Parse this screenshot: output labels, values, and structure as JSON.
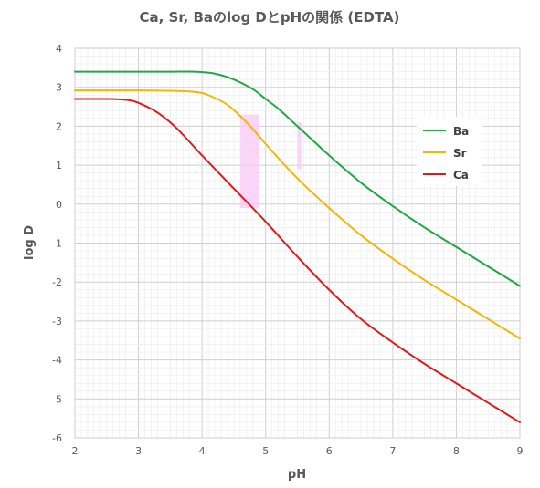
{
  "chart_data": {
    "type": "line",
    "title": "Ca, Sr, Baのlog DとpHの関係 (EDTA)",
    "xlabel": "pH",
    "ylabel": "log D",
    "xlim": [
      2,
      9
    ],
    "ylim": [
      -6,
      4
    ],
    "xticks": [
      "2",
      "3",
      "4",
      "5",
      "6",
      "7",
      "8",
      "9"
    ],
    "yticks": [
      "-6",
      "-5",
      "-4",
      "-3",
      "-2",
      "-1",
      "0",
      "1",
      "2",
      "3",
      "4"
    ],
    "grid": true,
    "legend_position": "right",
    "series": [
      {
        "name": "Ba",
        "color": "#1fa846",
        "x": [
          2.0,
          2.5,
          3.0,
          3.5,
          3.9,
          4.2,
          4.5,
          4.8,
          5.0,
          5.2,
          5.5,
          5.8,
          6.0,
          6.5,
          7.0,
          7.5,
          8.0,
          8.5,
          9.0
        ],
        "y": [
          3.4,
          3.4,
          3.4,
          3.4,
          3.4,
          3.35,
          3.2,
          2.95,
          2.7,
          2.45,
          2.0,
          1.55,
          1.25,
          0.55,
          -0.05,
          -0.6,
          -1.1,
          -1.6,
          -2.1
        ]
      },
      {
        "name": "Sr",
        "color": "#f2b705",
        "x": [
          2.0,
          2.5,
          3.0,
          3.5,
          3.9,
          4.1,
          4.4,
          4.7,
          5.0,
          5.3,
          5.6,
          6.0,
          6.5,
          7.0,
          7.5,
          8.0,
          8.5,
          9.0
        ],
        "y": [
          2.92,
          2.92,
          2.92,
          2.91,
          2.88,
          2.8,
          2.55,
          2.1,
          1.55,
          1.0,
          0.5,
          -0.1,
          -0.8,
          -1.4,
          -1.95,
          -2.45,
          -2.95,
          -3.45
        ]
      },
      {
        "name": "Ca",
        "color": "#e0191b",
        "x": [
          2.0,
          2.5,
          2.8,
          3.0,
          3.3,
          3.6,
          4.0,
          4.5,
          5.0,
          5.5,
          6.0,
          6.5,
          7.0,
          7.5,
          8.0,
          8.5,
          9.0
        ],
        "y": [
          2.7,
          2.7,
          2.68,
          2.6,
          2.35,
          1.95,
          1.25,
          0.4,
          -0.45,
          -1.35,
          -2.2,
          -2.95,
          -3.55,
          -4.1,
          -4.6,
          -5.1,
          -5.6
        ]
      }
    ],
    "highlights": [
      {
        "x": [
          4.6,
          4.9
        ],
        "y": [
          -0.1,
          2.3
        ],
        "color": "#f9c8f5"
      },
      {
        "x": [
          5.5,
          5.56
        ],
        "y": [
          0.9,
          2.1
        ],
        "color": "#f9c8f5"
      }
    ]
  }
}
